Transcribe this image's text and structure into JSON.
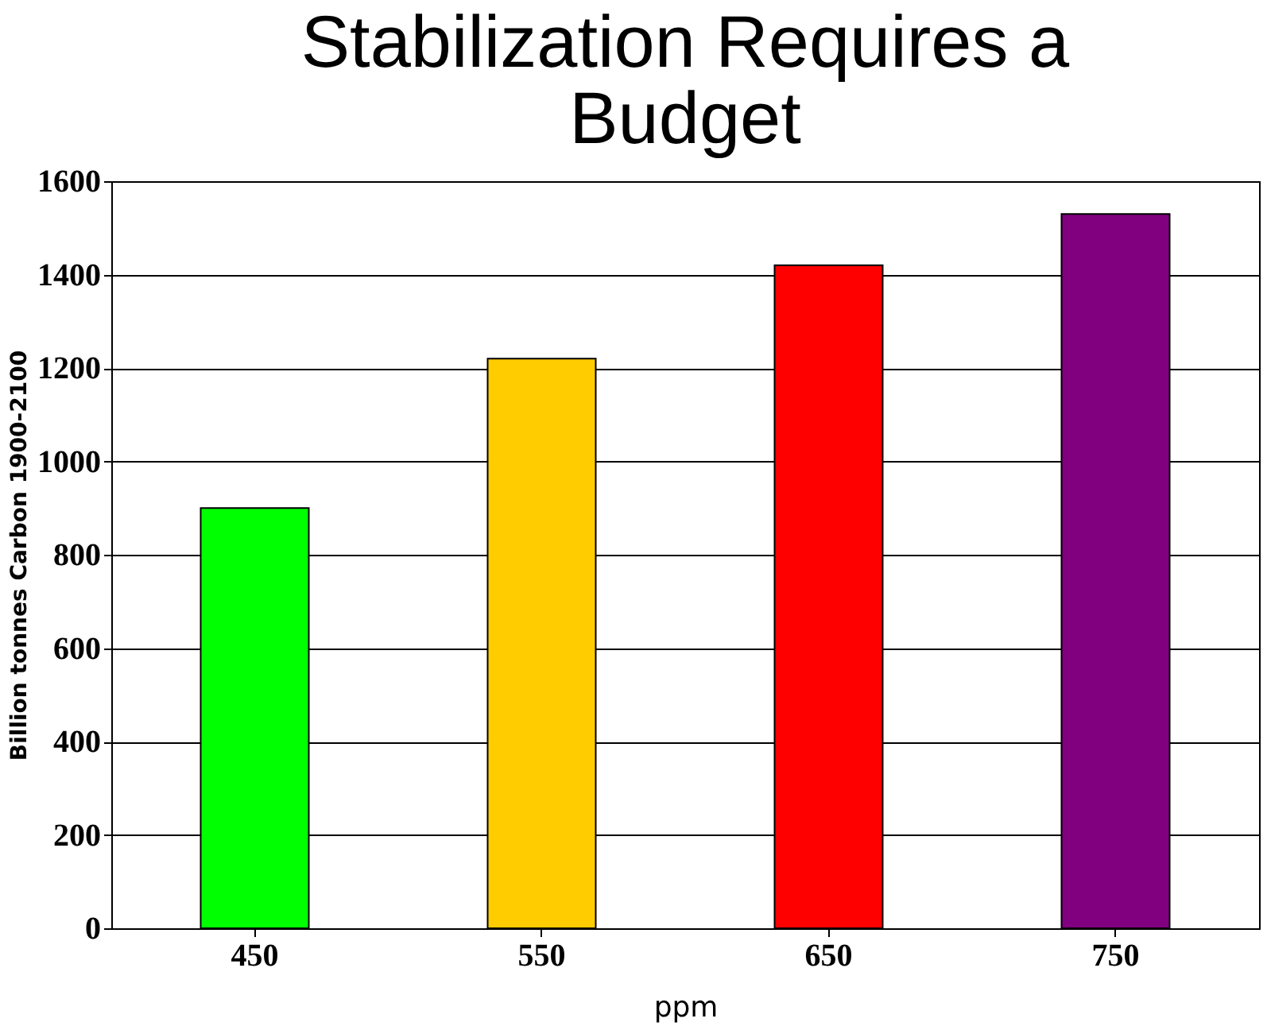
{
  "chart_data": {
    "type": "bar",
    "title": [
      "Stabilization Requires a",
      "Budget"
    ],
    "xlabel": "ppm",
    "ylabel": "Billion tonnes Carbon 1900-2100",
    "categories": [
      "450",
      "550",
      "650",
      "750"
    ],
    "values": [
      900,
      1220,
      1420,
      1530
    ],
    "colors": [
      "#00ff00",
      "#ffcc00",
      "#ff0000",
      "#800080"
    ],
    "ylim": [
      0,
      1600
    ],
    "yticks": [
      0,
      200,
      400,
      600,
      800,
      1000,
      1200,
      1400,
      1600
    ],
    "grid": "y"
  }
}
